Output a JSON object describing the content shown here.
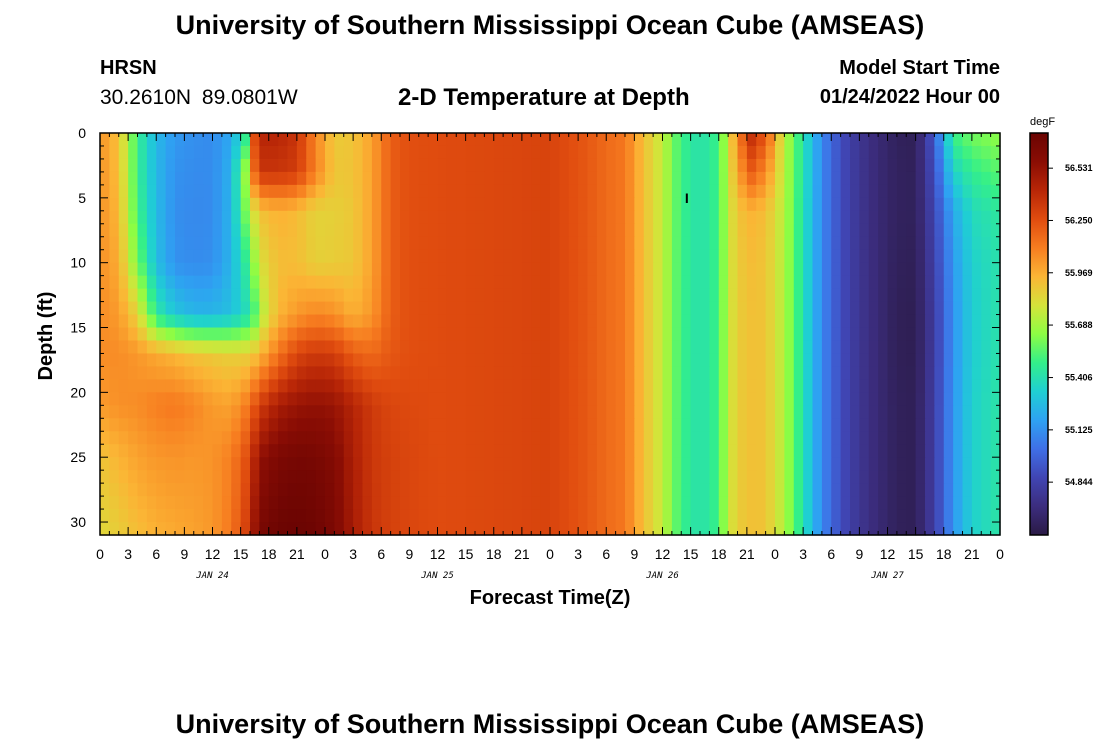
{
  "header": {
    "title": "University of Southern Mississippi Ocean Cube (AMSEAS)",
    "station": "HRSN",
    "coordinates": "30.2610N  89.0801W",
    "subtitle": "2-D Temperature at Depth",
    "start_label": "Model Start Time",
    "start_value": "01/24/2022 Hour 00"
  },
  "footer": {
    "title": "University of Southern Mississippi Ocean Cube (AMSEAS)"
  },
  "chart_data": {
    "type": "heatmap",
    "title": "2-D Temperature at Depth",
    "xlabel": "Forecast Time(Z)",
    "ylabel": "Depth (ft)",
    "x_ticks": [
      "0",
      "3",
      "6",
      "9",
      "12",
      "15",
      "18",
      "21",
      "0",
      "3",
      "6",
      "9",
      "12",
      "15",
      "18",
      "21",
      "0",
      "3",
      "6",
      "9",
      "12",
      "15",
      "18",
      "21",
      "0",
      "3",
      "6",
      "9",
      "12",
      "15",
      "18",
      "21",
      "0"
    ],
    "x_day_labels": [
      "JAN 24",
      "JAN 25",
      "JAN 26",
      "JAN 27"
    ],
    "y_ticks": [
      0,
      5,
      10,
      15,
      20,
      25,
      30
    ],
    "ylim": [
      0,
      31
    ],
    "xlim_hours": [
      0,
      96
    ],
    "colorbar": {
      "unit": "degF",
      "labels": [
        "56.531",
        "56.250",
        "55.969",
        "55.688",
        "55.406",
        "55.125",
        "54.844"
      ],
      "range": [
        54.56,
        56.72
      ],
      "colors": [
        "#2a1a45",
        "#3c2d7e",
        "#4045b3",
        "#3f6fe6",
        "#2ea2f2",
        "#1fcfd3",
        "#33ef8a",
        "#8dfd44",
        "#d5e33a",
        "#fbb535",
        "#f77d20",
        "#e04c0f",
        "#b82607",
        "#8a0d04",
        "#6a0402"
      ]
    },
    "series": [
      {
        "depths_ft": [
          0,
          3,
          6,
          10,
          14,
          17,
          21,
          25,
          31
        ],
        "hours": [
          0,
          2,
          4,
          6,
          8,
          10,
          12,
          14,
          15.5,
          16.5,
          17.5,
          19,
          21,
          23,
          25,
          27,
          29,
          31,
          33,
          36,
          40,
          44,
          48,
          52,
          54,
          56,
          58,
          60,
          62,
          64,
          66,
          67,
          68,
          69.5,
          71,
          73,
          75,
          77,
          79,
          81,
          83,
          85,
          87,
          89,
          91,
          93,
          96
        ],
        "values": [
          [
            56.04,
            55.91,
            55.48,
            55.25,
            55.15,
            55.12,
            55.11,
            55.2,
            55.44,
            56.27,
            56.42,
            56.42,
            56.35,
            56.08,
            55.88,
            55.9,
            56.0,
            56.2,
            56.25,
            56.26,
            56.27,
            56.28,
            56.29,
            56.22,
            56.16,
            56.12,
            55.91,
            55.75,
            55.49,
            55.41,
            55.5,
            55.78,
            56.09,
            56.38,
            56.23,
            55.74,
            55.42,
            55.1,
            54.9,
            54.77,
            54.69,
            54.62,
            54.61,
            54.96,
            55.5,
            55.6,
            55.65
          ],
          [
            56.04,
            55.92,
            55.48,
            55.25,
            55.13,
            55.11,
            55.11,
            55.23,
            55.67,
            56.18,
            56.35,
            56.35,
            56.32,
            56.09,
            55.89,
            55.9,
            56.0,
            56.2,
            56.25,
            56.26,
            56.27,
            56.28,
            56.29,
            56.22,
            56.16,
            56.12,
            55.91,
            55.75,
            55.49,
            55.41,
            55.5,
            55.77,
            56.0,
            56.2,
            56.07,
            55.73,
            55.42,
            55.1,
            54.9,
            54.77,
            54.69,
            54.63,
            54.62,
            54.91,
            55.35,
            55.47,
            55.55
          ],
          [
            56.04,
            55.94,
            55.5,
            55.26,
            55.12,
            55.1,
            55.11,
            55.24,
            55.6,
            55.82,
            55.92,
            55.96,
            55.93,
            55.85,
            55.86,
            55.89,
            56.0,
            56.2,
            56.25,
            56.26,
            56.27,
            56.28,
            56.29,
            56.22,
            56.16,
            56.12,
            55.91,
            55.75,
            55.49,
            55.41,
            55.5,
            55.76,
            55.9,
            55.95,
            55.92,
            55.72,
            55.41,
            55.1,
            54.9,
            54.77,
            54.69,
            54.63,
            54.62,
            54.87,
            55.2,
            55.38,
            55.45
          ],
          [
            56.05,
            55.97,
            55.6,
            55.27,
            55.13,
            55.11,
            55.12,
            55.24,
            55.45,
            55.67,
            55.83,
            55.92,
            55.92,
            55.86,
            55.87,
            55.89,
            56.0,
            56.2,
            56.25,
            56.26,
            56.27,
            56.28,
            56.29,
            56.22,
            56.16,
            56.12,
            55.91,
            55.75,
            55.49,
            55.41,
            55.5,
            55.76,
            55.88,
            55.92,
            55.9,
            55.71,
            55.41,
            55.1,
            54.9,
            54.77,
            54.69,
            54.62,
            54.61,
            54.84,
            55.15,
            55.34,
            55.42
          ],
          [
            56.06,
            56.02,
            55.85,
            55.45,
            55.3,
            55.24,
            55.24,
            55.28,
            55.38,
            55.52,
            55.75,
            55.94,
            56.03,
            56.08,
            56.05,
            55.96,
            56.03,
            56.2,
            56.25,
            56.26,
            56.27,
            56.28,
            56.29,
            56.22,
            56.16,
            56.12,
            55.91,
            55.75,
            55.49,
            55.41,
            55.5,
            55.76,
            55.87,
            55.91,
            55.9,
            55.71,
            55.41,
            55.1,
            54.9,
            54.77,
            54.69,
            54.61,
            54.6,
            54.82,
            55.13,
            55.33,
            55.42
          ],
          [
            56.06,
            56.06,
            56.03,
            55.98,
            55.94,
            55.9,
            55.88,
            55.86,
            55.86,
            55.9,
            55.98,
            56.12,
            56.28,
            56.33,
            56.31,
            56.2,
            56.16,
            56.22,
            56.25,
            56.26,
            56.27,
            56.28,
            56.29,
            56.22,
            56.16,
            56.12,
            55.91,
            55.75,
            55.49,
            55.41,
            55.5,
            55.76,
            55.87,
            55.91,
            55.9,
            55.71,
            55.41,
            55.1,
            54.9,
            54.77,
            54.69,
            54.61,
            54.6,
            54.82,
            55.13,
            55.33,
            55.42
          ],
          [
            56.02,
            56.05,
            56.06,
            56.1,
            56.12,
            56.08,
            56.02,
            56.0,
            56.1,
            56.23,
            56.35,
            56.46,
            56.52,
            56.54,
            56.52,
            56.42,
            56.33,
            56.28,
            56.27,
            56.26,
            56.27,
            56.28,
            56.29,
            56.22,
            56.16,
            56.12,
            55.91,
            55.75,
            55.49,
            55.41,
            55.5,
            55.76,
            55.87,
            55.91,
            55.9,
            55.71,
            55.41,
            55.1,
            54.9,
            54.77,
            54.69,
            54.62,
            54.61,
            54.83,
            55.14,
            55.34,
            55.43
          ],
          [
            55.9,
            55.95,
            56.0,
            56.03,
            56.04,
            56.03,
            56.04,
            56.1,
            56.24,
            56.42,
            56.56,
            56.63,
            56.66,
            56.65,
            56.6,
            56.45,
            56.34,
            56.3,
            56.28,
            56.26,
            56.27,
            56.28,
            56.29,
            56.22,
            56.16,
            56.12,
            55.91,
            55.75,
            55.49,
            55.41,
            55.5,
            55.76,
            55.87,
            55.91,
            55.9,
            55.71,
            55.41,
            55.1,
            54.9,
            54.77,
            54.69,
            54.62,
            54.61,
            54.83,
            55.14,
            55.34,
            55.43
          ],
          [
            55.83,
            55.87,
            55.92,
            55.96,
            55.98,
            56.0,
            56.03,
            56.12,
            56.3,
            56.52,
            56.66,
            56.71,
            56.72,
            56.7,
            56.63,
            56.47,
            56.35,
            56.3,
            56.28,
            56.26,
            56.27,
            56.28,
            56.29,
            56.22,
            56.16,
            56.12,
            55.91,
            55.75,
            55.49,
            55.41,
            55.5,
            55.76,
            55.87,
            55.91,
            55.9,
            55.71,
            55.41,
            55.1,
            54.9,
            54.77,
            54.69,
            54.62,
            54.61,
            54.83,
            55.14,
            55.34,
            55.43
          ]
        ]
      }
    ],
    "annotation": "I"
  }
}
